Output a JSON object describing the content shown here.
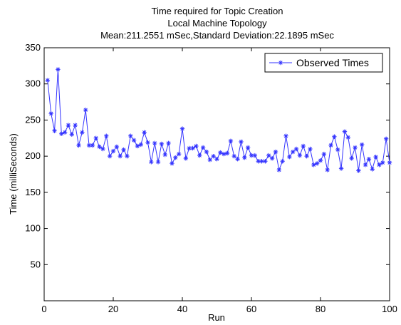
{
  "chart_data": {
    "type": "line",
    "title": [
      "Time required for Topic Creation",
      "Local Machine Topology",
      "Mean:211.2551 mSec,Standard Deviation:22.1895 mSec"
    ],
    "xlabel": "Run",
    "ylabel": "Time (milliSeconds)",
    "xlim": [
      0,
      100
    ],
    "ylim": [
      0,
      350
    ],
    "xticks": [
      0,
      20,
      40,
      60,
      80,
      100
    ],
    "yticks": [
      50,
      100,
      150,
      200,
      250,
      300,
      350
    ],
    "grid": false,
    "legend_position": "top-right",
    "series": [
      {
        "name": "Observed Times",
        "color": "#3333ff",
        "marker": "star",
        "x": [
          1,
          2,
          3,
          4,
          5,
          6,
          7,
          8,
          9,
          10,
          11,
          12,
          13,
          14,
          15,
          16,
          17,
          18,
          19,
          20,
          21,
          22,
          23,
          24,
          25,
          26,
          27,
          28,
          29,
          30,
          31,
          32,
          33,
          34,
          35,
          36,
          37,
          38,
          39,
          40,
          41,
          42,
          43,
          44,
          45,
          46,
          47,
          48,
          49,
          50,
          51,
          52,
          53,
          54,
          55,
          56,
          57,
          58,
          59,
          60,
          61,
          62,
          63,
          64,
          65,
          66,
          67,
          68,
          69,
          70,
          71,
          72,
          73,
          74,
          75,
          76,
          77,
          78,
          79,
          80,
          81,
          82,
          83,
          84,
          85,
          86,
          87,
          88,
          89,
          90,
          91,
          92,
          93,
          94,
          95,
          96,
          97,
          98,
          99,
          100
        ],
        "y": [
          305,
          259,
          235,
          320,
          231,
          233,
          243,
          230,
          243,
          215,
          233,
          264,
          215,
          215,
          225,
          213,
          210,
          228,
          200,
          207,
          213,
          200,
          209,
          200,
          228,
          222,
          214,
          216,
          233,
          219,
          192,
          218,
          192,
          217,
          202,
          218,
          190,
          198,
          203,
          238,
          197,
          211,
          211,
          214,
          201,
          212,
          206,
          195,
          200,
          196,
          205,
          203,
          204,
          221,
          200,
          196,
          220,
          198,
          212,
          201,
          201,
          193,
          193,
          193,
          201,
          197,
          206,
          181,
          193,
          228,
          199,
          206,
          210,
          201,
          214,
          200,
          210,
          188,
          190,
          194,
          203,
          181,
          215,
          227,
          209,
          183,
          234,
          226,
          197,
          212,
          180,
          216,
          188,
          196,
          182,
          199,
          188,
          191,
          224,
          191
        ]
      }
    ]
  }
}
